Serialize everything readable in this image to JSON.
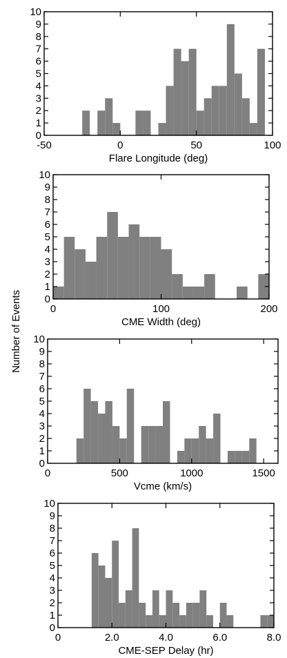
{
  "figure": {
    "shared_ylabel": "Number of Events",
    "bar_color": "#808080",
    "axis_color": "#000000"
  },
  "chart_data": [
    {
      "type": "bar",
      "id": "flare-longitude",
      "xlabel": "Flare Longitude (deg)",
      "ylabel": "Number of Events",
      "xlim": [
        -50,
        100
      ],
      "ylim": [
        0,
        10
      ],
      "xticks": [
        -50,
        0,
        50,
        100
      ],
      "xtick_labels": [
        "-50",
        "0",
        "50",
        "100"
      ],
      "yticks": [
        0,
        1,
        2,
        3,
        4,
        5,
        6,
        7,
        8,
        9,
        10
      ],
      "bin_width": 5,
      "bins": [
        {
          "x0": -25,
          "value": 2
        },
        {
          "x0": -15,
          "value": 2
        },
        {
          "x0": -10,
          "value": 3
        },
        {
          "x0": -5,
          "value": 1
        },
        {
          "x0": 10,
          "value": 2
        },
        {
          "x0": 15,
          "value": 2
        },
        {
          "x0": 25,
          "value": 1
        },
        {
          "x0": 30,
          "value": 4
        },
        {
          "x0": 35,
          "value": 7
        },
        {
          "x0": 40,
          "value": 6
        },
        {
          "x0": 45,
          "value": 7
        },
        {
          "x0": 50,
          "value": 2
        },
        {
          "x0": 55,
          "value": 3
        },
        {
          "x0": 60,
          "value": 4
        },
        {
          "x0": 65,
          "value": 4
        },
        {
          "x0": 70,
          "value": 9
        },
        {
          "x0": 75,
          "value": 5
        },
        {
          "x0": 80,
          "value": 3
        },
        {
          "x0": 85,
          "value": 1
        },
        {
          "x0": 90,
          "value": 7
        }
      ]
    },
    {
      "type": "bar",
      "id": "cme-width",
      "xlabel": "CME Width (deg)",
      "ylabel": "Number of Events",
      "xlim": [
        0,
        200
      ],
      "ylim": [
        0,
        10
      ],
      "xticks": [
        0,
        100,
        200
      ],
      "xtick_labels": [
        "0",
        "100",
        "200"
      ],
      "yticks": [
        0,
        1,
        2,
        3,
        4,
        5,
        6,
        7,
        8,
        9,
        10
      ],
      "bin_width": 10,
      "bins": [
        {
          "x0": 0,
          "value": 1
        },
        {
          "x0": 10,
          "value": 5
        },
        {
          "x0": 20,
          "value": 4
        },
        {
          "x0": 30,
          "value": 3
        },
        {
          "x0": 40,
          "value": 5
        },
        {
          "x0": 50,
          "value": 7
        },
        {
          "x0": 60,
          "value": 5
        },
        {
          "x0": 70,
          "value": 6
        },
        {
          "x0": 80,
          "value": 5
        },
        {
          "x0": 90,
          "value": 5
        },
        {
          "x0": 100,
          "value": 4
        },
        {
          "x0": 110,
          "value": 2
        },
        {
          "x0": 120,
          "value": 1
        },
        {
          "x0": 130,
          "value": 1
        },
        {
          "x0": 140,
          "value": 2
        },
        {
          "x0": 170,
          "value": 1
        },
        {
          "x0": 190,
          "value": 2
        }
      ]
    },
    {
      "type": "bar",
      "id": "vcme",
      "xlabel": "Vcme (km/s)",
      "ylabel": "Number of Events",
      "xlim": [
        0,
        1600
      ],
      "ylim": [
        0,
        10
      ],
      "xticks": [
        0,
        500,
        1000,
        1500
      ],
      "xtick_labels": [
        "0",
        "500",
        "1000",
        "1500"
      ],
      "yticks": [
        0,
        1,
        2,
        3,
        4,
        5,
        6,
        7,
        8,
        9,
        10
      ],
      "bin_width": 50,
      "bins": [
        {
          "x0": 200,
          "value": 2
        },
        {
          "x0": 250,
          "value": 6
        },
        {
          "x0": 300,
          "value": 5
        },
        {
          "x0": 350,
          "value": 4
        },
        {
          "x0": 400,
          "value": 5
        },
        {
          "x0": 450,
          "value": 3
        },
        {
          "x0": 500,
          "value": 2
        },
        {
          "x0": 550,
          "value": 6
        },
        {
          "x0": 650,
          "value": 3
        },
        {
          "x0": 700,
          "value": 3
        },
        {
          "x0": 750,
          "value": 3
        },
        {
          "x0": 800,
          "value": 5
        },
        {
          "x0": 900,
          "value": 1
        },
        {
          "x0": 950,
          "value": 2
        },
        {
          "x0": 1000,
          "value": 2
        },
        {
          "x0": 1050,
          "value": 3
        },
        {
          "x0": 1100,
          "value": 2
        },
        {
          "x0": 1150,
          "value": 4
        },
        {
          "x0": 1250,
          "value": 1
        },
        {
          "x0": 1300,
          "value": 1
        },
        {
          "x0": 1350,
          "value": 1
        },
        {
          "x0": 1400,
          "value": 2
        }
      ]
    },
    {
      "type": "bar",
      "id": "cme-sep-delay",
      "xlabel": "CME-SEP Delay (hr)",
      "ylabel": "Number of Events",
      "xlim": [
        0,
        8
      ],
      "ylim": [
        0,
        10
      ],
      "xticks": [
        0,
        2,
        4,
        6,
        8
      ],
      "xtick_labels": [
        "0",
        "2.0",
        "4.0",
        "6.0",
        "8.0"
      ],
      "yticks": [
        0,
        1,
        2,
        3,
        4,
        5,
        6,
        7,
        8,
        9,
        10
      ],
      "bin_width": 0.25,
      "bins": [
        {
          "x0": 1.25,
          "value": 6
        },
        {
          "x0": 1.5,
          "value": 5
        },
        {
          "x0": 1.75,
          "value": 4
        },
        {
          "x0": 2.0,
          "value": 7
        },
        {
          "x0": 2.25,
          "value": 2
        },
        {
          "x0": 2.5,
          "value": 3
        },
        {
          "x0": 2.75,
          "value": 8
        },
        {
          "x0": 3.0,
          "value": 2
        },
        {
          "x0": 3.25,
          "value": 1
        },
        {
          "x0": 3.5,
          "value": 3
        },
        {
          "x0": 3.75,
          "value": 1
        },
        {
          "x0": 4.0,
          "value": 3
        },
        {
          "x0": 4.25,
          "value": 2
        },
        {
          "x0": 4.5,
          "value": 1
        },
        {
          "x0": 4.75,
          "value": 2
        },
        {
          "x0": 5.0,
          "value": 2
        },
        {
          "x0": 5.25,
          "value": 3
        },
        {
          "x0": 5.5,
          "value": 1
        },
        {
          "x0": 6.0,
          "value": 2
        },
        {
          "x0": 6.25,
          "value": 1
        },
        {
          "x0": 7.5,
          "value": 1
        },
        {
          "x0": 7.75,
          "value": 1
        }
      ]
    }
  ]
}
